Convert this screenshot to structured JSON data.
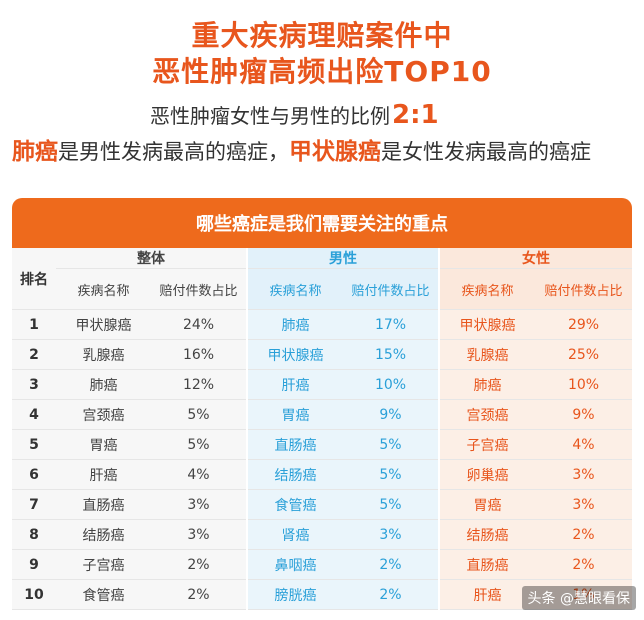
{
  "title_line1": "重大疾病理赔案件中",
  "title_line2": "恶性肿瘤高频出险TOP10",
  "ratio_text": "恶性肿瘤女性与男性的比例",
  "ratio_value": "2:1",
  "sub": {
    "lung": "肺癌",
    "part1": "是男性发病最高的癌症，",
    "thyroid": "甲状腺癌",
    "part2": "是女性发病最高的癌症"
  },
  "banner": "哪些癌症是我们需要关注的重点",
  "headers": {
    "rank": "排名",
    "overall": "整体",
    "male": "男性",
    "female": "女性",
    "disease": "疾病名称",
    "share": "赔付件数占比"
  },
  "rows": [
    {
      "rank": "1",
      "o_name": "甲状腺癌",
      "o_pct": "24%",
      "m_name": "肺癌",
      "m_pct": "17%",
      "f_name": "甲状腺癌",
      "f_pct": "29%"
    },
    {
      "rank": "2",
      "o_name": "乳腺癌",
      "o_pct": "16%",
      "m_name": "甲状腺癌",
      "m_pct": "15%",
      "f_name": "乳腺癌",
      "f_pct": "25%"
    },
    {
      "rank": "3",
      "o_name": "肺癌",
      "o_pct": "12%",
      "m_name": "肝癌",
      "m_pct": "10%",
      "f_name": "肺癌",
      "f_pct": "10%"
    },
    {
      "rank": "4",
      "o_name": "宫颈癌",
      "o_pct": "5%",
      "m_name": "胃癌",
      "m_pct": "9%",
      "f_name": "宫颈癌",
      "f_pct": "9%"
    },
    {
      "rank": "5",
      "o_name": "胃癌",
      "o_pct": "5%",
      "m_name": "直肠癌",
      "m_pct": "5%",
      "f_name": "子宫癌",
      "f_pct": "4%"
    },
    {
      "rank": "6",
      "o_name": "肝癌",
      "o_pct": "4%",
      "m_name": "结肠癌",
      "m_pct": "5%",
      "f_name": "卵巢癌",
      "f_pct": "3%"
    },
    {
      "rank": "7",
      "o_name": "直肠癌",
      "o_pct": "3%",
      "m_name": "食管癌",
      "m_pct": "5%",
      "f_name": "胃癌",
      "f_pct": "3%"
    },
    {
      "rank": "8",
      "o_name": "结肠癌",
      "o_pct": "3%",
      "m_name": "肾癌",
      "m_pct": "3%",
      "f_name": "结肠癌",
      "f_pct": "2%"
    },
    {
      "rank": "9",
      "o_name": "子宫癌",
      "o_pct": "2%",
      "m_name": "鼻咽癌",
      "m_pct": "2%",
      "f_name": "直肠癌",
      "f_pct": "2%"
    },
    {
      "rank": "10",
      "o_name": "食管癌",
      "o_pct": "2%",
      "m_name": "膀胱癌",
      "m_pct": "2%",
      "f_name": "肝癌",
      "f_pct": "1%"
    }
  ],
  "watermark": "头条 @慧眼看保"
}
